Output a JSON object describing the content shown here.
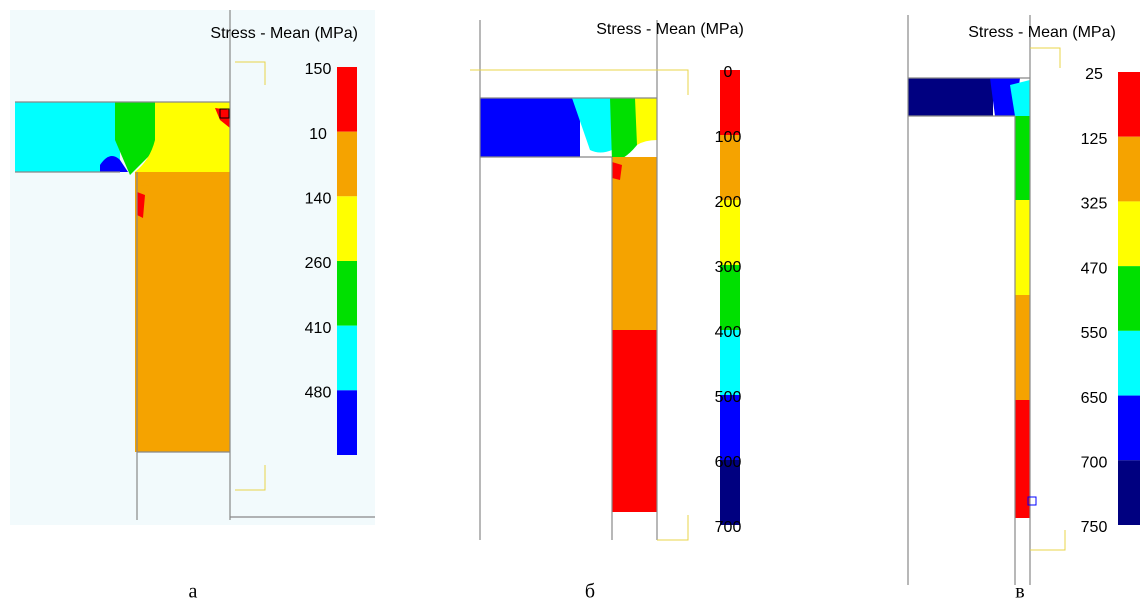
{
  "panels": [
    {
      "title": "Stress - Mean (MPa)",
      "legend_labels": [
        150,
        10,
        140,
        260,
        410,
        480
      ],
      "colors": [
        "#ff0000",
        "#f5a300",
        "#ffff00",
        "#00e000",
        "#00ffff",
        "#0000ff"
      ],
      "caption": "а"
    },
    {
      "title": "Stress - Mean (MPa)",
      "legend_labels": [
        0,
        100,
        200,
        300,
        400,
        500,
        600,
        700
      ],
      "colors": [
        "#ff0000",
        "#f5a300",
        "#ffff00",
        "#00e000",
        "#00ffff",
        "#0000ff",
        "#000080"
      ],
      "caption": "б"
    },
    {
      "title": "Stress - Mean (MPa)",
      "legend_labels": [
        25,
        125,
        325,
        470,
        550,
        650,
        700,
        750
      ],
      "colors": [
        "#ff0000",
        "#f5a300",
        "#ffff00",
        "#00e000",
        "#00ffff",
        "#0000ff",
        "#000080"
      ],
      "caption": "в"
    }
  ]
}
